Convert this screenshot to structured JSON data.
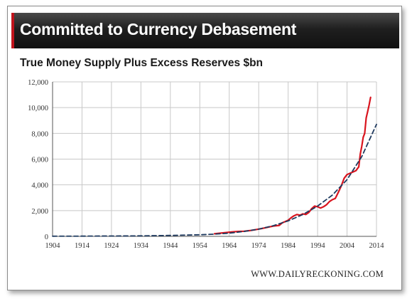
{
  "banner": {
    "title": "Committed to Currency Debasement"
  },
  "footer": {
    "source": "WWW.DAILYRECKONING.COM"
  },
  "colors": {
    "actual": "#d9141e",
    "trend": "#1f3a5f",
    "banner": "#1f1f1f",
    "accent": "#c0141c"
  },
  "chart_data": {
    "type": "line",
    "title": "True Money Supply Plus Excess Reserves $bn",
    "xlabel": "",
    "ylabel": "",
    "xlim": [
      1904,
      2014
    ],
    "ylim": [
      0,
      12000
    ],
    "grid": true,
    "x_ticks": [
      1904,
      1914,
      1924,
      1934,
      1944,
      1954,
      1964,
      1974,
      1984,
      1994,
      2004,
      2014
    ],
    "x_tick_labels": [
      "1904",
      "1914",
      "1924",
      "1934",
      "1944",
      "1954",
      "1964",
      "1974",
      "1984",
      "1994",
      "2004",
      "2014"
    ],
    "y_ticks": [
      0,
      2000,
      4000,
      6000,
      8000,
      10000,
      12000
    ],
    "y_tick_labels": [
      "0",
      "2,000",
      "4,000",
      "6,000",
      "8,000",
      "10,000",
      "12,000"
    ],
    "series": [
      {
        "style": "solid",
        "color": "#d9141e",
        "x": [
          1959,
          1961,
          1963,
          1965,
          1967,
          1969,
          1971,
          1973,
          1975,
          1977,
          1979,
          1981,
          1982,
          1983,
          1984,
          1985,
          1986,
          1987,
          1988,
          1989,
          1990,
          1991,
          1992,
          1993,
          1994,
          1995,
          1996,
          1997,
          1998,
          1999,
          2000,
          2001,
          2002,
          2003,
          2004,
          2005,
          2006,
          2007,
          2008,
          2008.5,
          2009,
          2009.5,
          2010,
          2010.5,
          2011,
          2011.5,
          2012
        ],
        "y": [
          200,
          250,
          300,
          350,
          380,
          400,
          450,
          520,
          600,
          700,
          800,
          850,
          1050,
          1150,
          1250,
          1450,
          1600,
          1700,
          1650,
          1750,
          1700,
          1850,
          2150,
          2350,
          2300,
          2200,
          2300,
          2450,
          2700,
          2850,
          2950,
          3400,
          3900,
          4500,
          4800,
          4900,
          5000,
          5100,
          5400,
          6400,
          7000,
          7700,
          8000,
          9200,
          9700,
          10200,
          10800
        ]
      },
      {
        "style": "dashed",
        "color": "#1f3a5f",
        "x": [
          1904,
          1914,
          1924,
          1934,
          1944,
          1954,
          1959,
          1964,
          1969,
          1974,
          1979,
          1984,
          1989,
          1994,
          1999,
          2004,
          2009,
          2014
        ],
        "y": [
          10,
          15,
          25,
          40,
          70,
          120,
          170,
          250,
          380,
          560,
          830,
          1200,
          1700,
          2350,
          3200,
          4400,
          6200,
          8700
        ]
      }
    ]
  }
}
